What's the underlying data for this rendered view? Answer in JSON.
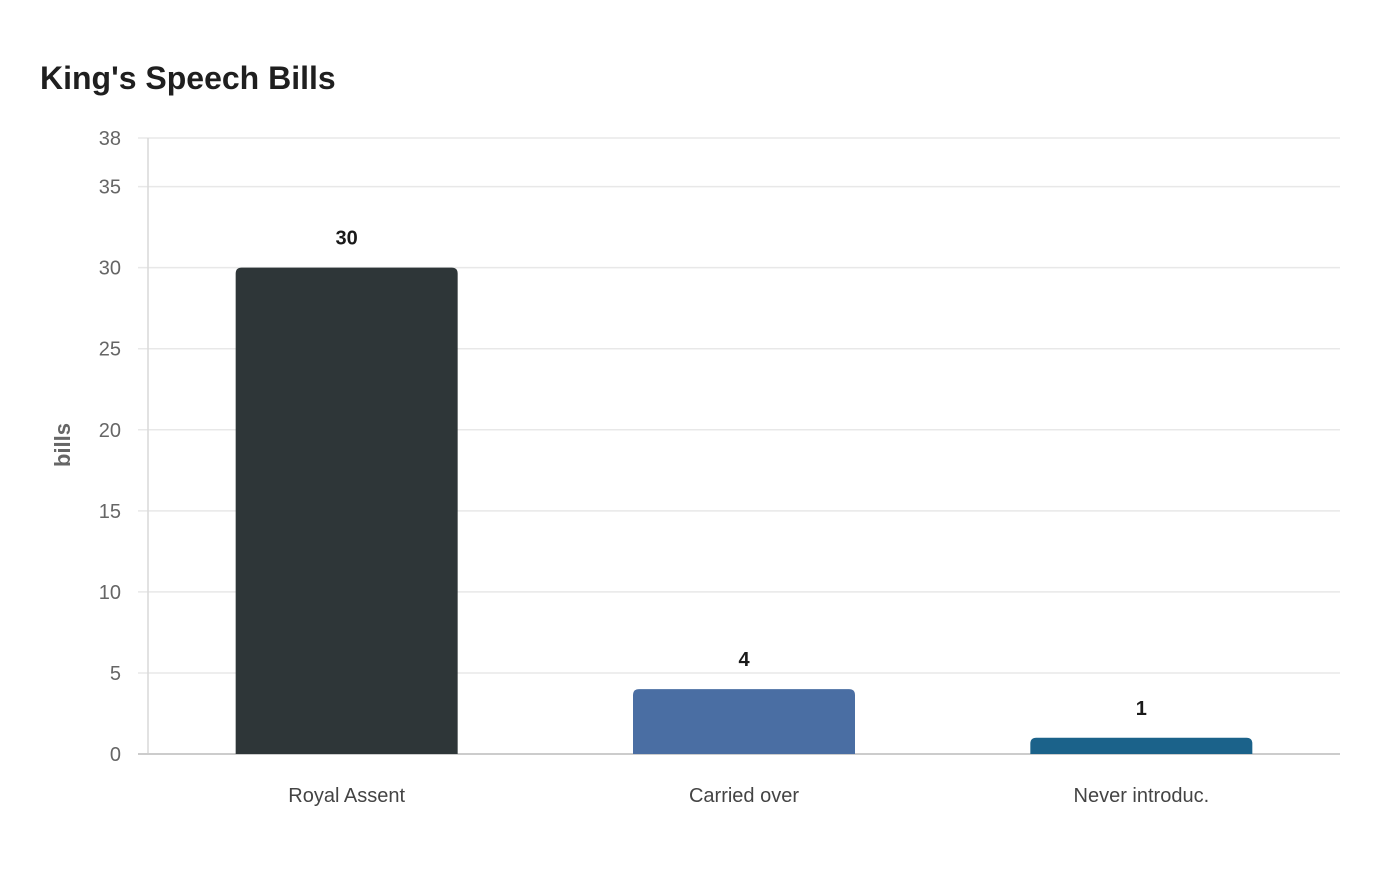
{
  "chart_data": {
    "type": "bar",
    "title": "King's Speech Bills",
    "xlabel": "",
    "ylabel": "bills",
    "categories": [
      "Royal Assent",
      "Carried over",
      "Never introduc."
    ],
    "values": [
      30,
      4,
      1
    ],
    "value_labels": [
      "30",
      "4",
      "1"
    ],
    "ylim": [
      0,
      38
    ],
    "yticks": [
      0,
      5,
      10,
      15,
      20,
      25,
      30,
      35,
      38
    ],
    "grid": true,
    "colors": [
      "#2e3638",
      "#4a6ea3",
      "#1b628a"
    ]
  }
}
